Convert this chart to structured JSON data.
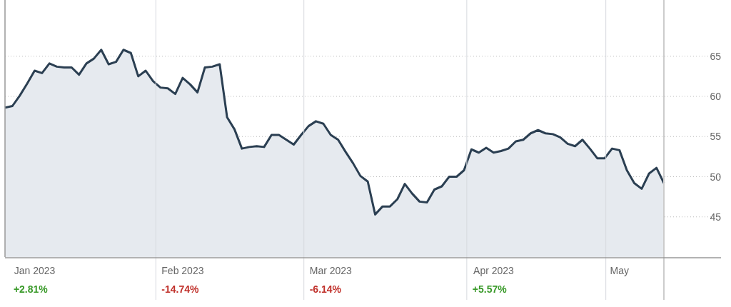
{
  "chart_data": {
    "type": "area",
    "categories": [
      null,
      null,
      null,
      null,
      "Jan 2023",
      null,
      null,
      null,
      null,
      null,
      null,
      null,
      null,
      null,
      null,
      null,
      null,
      null,
      null,
      null,
      null,
      null,
      null,
      null,
      "Feb 2023",
      null,
      null,
      null,
      null,
      null,
      null,
      null,
      null,
      null,
      null,
      null,
      null,
      null,
      null,
      null,
      null,
      null,
      null,
      null,
      "Mar 2023",
      null,
      null,
      null,
      null,
      null,
      null,
      null,
      null,
      null,
      null,
      null,
      null,
      null,
      null,
      null,
      null,
      null,
      null,
      null,
      null,
      null,
      "Apr 2023",
      null,
      null,
      null,
      null,
      null,
      null,
      null,
      null,
      null,
      null,
      null,
      null,
      null,
      null,
      null,
      null,
      "May",
      null,
      null,
      null,
      null,
      null,
      null
    ],
    "series": [
      {
        "color": "#2b3f52",
        "values": [
          58.6,
          58.8,
          60.1,
          61.6,
          63.2,
          62.9,
          64.1,
          63.7,
          63.6,
          63.6,
          62.7,
          64.1,
          64.7,
          65.8,
          64.0,
          64.3,
          65.8,
          65.4,
          62.5,
          63.2,
          61.9,
          61.1,
          61.0,
          60.3,
          62.3,
          61.5,
          60.5,
          63.6,
          63.7,
          64.0,
          57.4,
          55.9,
          53.5,
          53.7,
          53.8,
          53.7,
          55.2,
          55.2,
          54.6,
          54.0,
          55.2,
          56.3,
          56.9,
          56.6,
          55.2,
          54.6,
          53.1,
          51.7,
          50.1,
          49.4,
          45.3,
          46.3,
          46.3,
          47.2,
          49.1,
          47.9,
          46.9,
          46.8,
          48.4,
          48.8,
          50.0,
          50.0,
          50.8,
          53.4,
          53.0,
          53.6,
          53.0,
          53.2,
          53.5,
          54.4,
          54.6,
          55.4,
          55.8,
          55.4,
          55.3,
          54.9,
          54.1,
          53.8,
          54.6,
          53.5,
          52.3,
          52.3,
          53.5,
          53.3,
          50.8,
          49.2,
          48.5,
          50.4,
          51.1,
          49.2
        ]
      }
    ],
    "ylim": [
      40,
      72
    ],
    "yticks": [
      45,
      50,
      55,
      60,
      65
    ],
    "grid": true,
    "annotations": [
      "+2.81%",
      "-14.74%",
      "-6.14%",
      "+5.57%"
    ]
  }
}
